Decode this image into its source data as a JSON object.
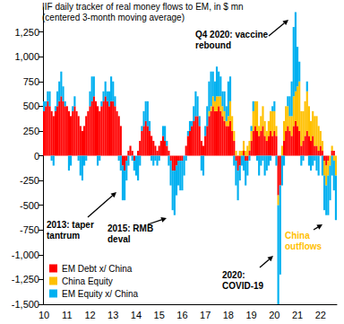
{
  "chart_data": {
    "type": "bar",
    "title": "IIF daily tracker of real money flows to EM, in $ mn",
    "subtitle": "(centered 3-month moving average)",
    "stacked": true,
    "grid": false,
    "legend": "lower left",
    "annotations": [
      "Q4 2020: vaccine\nrebound",
      "2013: taper\ntantrum",
      "2015: RMB\ndeval",
      "2020:\nCOVID-19",
      "China\noutflows"
    ],
    "ylim": [
      -1500,
      1500
    ],
    "yticks": [
      {
        "value": -1500,
        "label": "-1,500"
      },
      {
        "value": -1250,
        "label": "-1,250"
      },
      {
        "value": -1000,
        "label": "-1,000"
      },
      -750,
      -500,
      -250,
      0,
      250,
      500,
      750,
      {
        "value": 1000,
        "label": "1,000"
      },
      {
        "value": 1250,
        "label": "1,250"
      }
    ],
    "categories": [
      "10",
      null,
      null,
      null,
      null,
      null,
      null,
      null,
      null,
      null,
      null,
      null,
      "11",
      null,
      null,
      null,
      null,
      null,
      null,
      null,
      null,
      null,
      null,
      null,
      "12",
      null,
      null,
      null,
      null,
      null,
      null,
      null,
      null,
      null,
      null,
      null,
      "13",
      null,
      null,
      null,
      null,
      null,
      null,
      null,
      null,
      null,
      null,
      null,
      "14",
      null,
      null,
      null,
      null,
      null,
      null,
      null,
      null,
      null,
      null,
      null,
      "15",
      null,
      null,
      null,
      null,
      null,
      null,
      null,
      null,
      null,
      null,
      null,
      "16",
      null,
      null,
      null,
      null,
      null,
      null,
      null,
      null,
      null,
      null,
      null,
      "17",
      null,
      null,
      null,
      null,
      null,
      null,
      null,
      null,
      null,
      null,
      null,
      "18",
      null,
      null,
      null,
      null,
      null,
      null,
      null,
      null,
      null,
      null,
      null,
      "19",
      null,
      null,
      null,
      null,
      null,
      null,
      null,
      null,
      null,
      null,
      null,
      "20",
      null,
      null,
      null,
      null,
      null,
      null,
      null,
      null,
      null,
      null,
      null,
      "21",
      null,
      null,
      null,
      null,
      null,
      null,
      null,
      null,
      null,
      null,
      null,
      "22",
      null,
      null,
      null,
      null,
      null,
      null,
      null,
      null
    ],
    "series": [
      {
        "name": "EM Debt x/ China",
        "color": "#ff0000",
        "values": [
          450,
          500,
          550,
          500,
          450,
          400,
          450,
          500,
          550,
          600,
          550,
          500,
          500,
          450,
          400,
          450,
          500,
          450,
          400,
          300,
          250,
          300,
          400,
          450,
          500,
          550,
          600,
          550,
          500,
          450,
          500,
          550,
          600,
          550,
          500,
          550,
          550,
          500,
          450,
          400,
          300,
          -100,
          -150,
          -50,
          50,
          100,
          50,
          -50,
          0,
          50,
          150,
          250,
          300,
          350,
          300,
          250,
          200,
          150,
          100,
          50,
          100,
          150,
          200,
          150,
          100,
          50,
          -50,
          -150,
          -150,
          -100,
          -50,
          -50,
          -50,
          0,
          100,
          200,
          250,
          300,
          350,
          400,
          400,
          300,
          150,
          100,
          200,
          300,
          400,
          450,
          500,
          450,
          450,
          500,
          450,
          400,
          350,
          300,
          300,
          350,
          250,
          150,
          -50,
          -150,
          -100,
          0,
          50,
          -50,
          -50,
          50,
          150,
          250,
          300,
          250,
          200,
          250,
          300,
          200,
          150,
          200,
          250,
          200,
          250,
          200,
          -400,
          -300,
          0,
          150,
          250,
          300,
          250,
          200,
          300,
          350,
          300,
          250,
          100,
          150,
          200,
          250,
          200,
          150,
          200,
          100,
          100,
          50,
          100,
          50,
          -50,
          -100,
          -50,
          0,
          50,
          50,
          0
        ]
      },
      {
        "name": "China Equity",
        "color": "#ffc000",
        "values": [
          0,
          0,
          0,
          0,
          0,
          0,
          0,
          0,
          0,
          0,
          0,
          0,
          0,
          0,
          0,
          0,
          0,
          0,
          0,
          0,
          0,
          0,
          0,
          0,
          0,
          0,
          0,
          0,
          0,
          0,
          0,
          0,
          0,
          0,
          0,
          0,
          0,
          0,
          0,
          0,
          0,
          0,
          0,
          0,
          0,
          0,
          0,
          0,
          0,
          0,
          0,
          0,
          0,
          0,
          0,
          0,
          0,
          0,
          0,
          0,
          0,
          0,
          0,
          0,
          0,
          0,
          0,
          0,
          0,
          0,
          0,
          0,
          0,
          0,
          0,
          0,
          0,
          0,
          0,
          0,
          0,
          0,
          0,
          0,
          0,
          0,
          50,
          50,
          100,
          100,
          150,
          100,
          150,
          100,
          100,
          50,
          100,
          200,
          150,
          100,
          50,
          0,
          50,
          50,
          100,
          50,
          100,
          100,
          100,
          200,
          250,
          300,
          100,
          150,
          200,
          150,
          100,
          150,
          200,
          250,
          200,
          100,
          -100,
          0,
          100,
          200,
          250,
          200,
          150,
          200,
          300,
          300,
          400,
          500,
          350,
          300,
          350,
          400,
          300,
          200,
          250,
          300,
          300,
          250,
          150,
          100,
          -150,
          -200,
          -150,
          -100,
          50,
          -50,
          -200
        ]
      },
      {
        "name": "EM Equity x/ China",
        "color": "#00b0f0",
        "values": [
          100,
          50,
          100,
          150,
          -50,
          -100,
          50,
          150,
          200,
          250,
          150,
          50,
          0,
          -150,
          -100,
          50,
          100,
          0,
          -50,
          -200,
          -250,
          -100,
          -50,
          0,
          150,
          250,
          200,
          0,
          -100,
          -50,
          50,
          100,
          150,
          100,
          150,
          250,
          200,
          100,
          0,
          -50,
          -150,
          -350,
          -300,
          -200,
          -100,
          0,
          -50,
          -100,
          -200,
          -250,
          -100,
          50,
          150,
          200,
          250,
          100,
          -50,
          -100,
          -50,
          -100,
          -50,
          0,
          100,
          150,
          50,
          -100,
          -250,
          -400,
          -450,
          -300,
          -250,
          -300,
          -300,
          -200,
          -50,
          50,
          100,
          50,
          150,
          250,
          200,
          100,
          -150,
          -200,
          100,
          200,
          300,
          350,
          250,
          200,
          300,
          250,
          200,
          150,
          200,
          150,
          350,
          250,
          0,
          -100,
          -250,
          -300,
          -150,
          -100,
          -150,
          -250,
          -150,
          -50,
          50,
          100,
          0,
          -50,
          -200,
          -100,
          -50,
          -200,
          -150,
          -100,
          -50,
          50,
          100,
          -100,
          -1500,
          -900,
          -300,
          -100,
          0,
          100,
          200,
          350,
          700,
          800,
          400,
          200,
          -100,
          -50,
          0,
          100,
          -100,
          -150,
          -100,
          -50,
          -150,
          -200,
          0,
          -200,
          -350,
          -300,
          -400,
          -350,
          -200,
          -300,
          -450
        ]
      }
    ]
  }
}
